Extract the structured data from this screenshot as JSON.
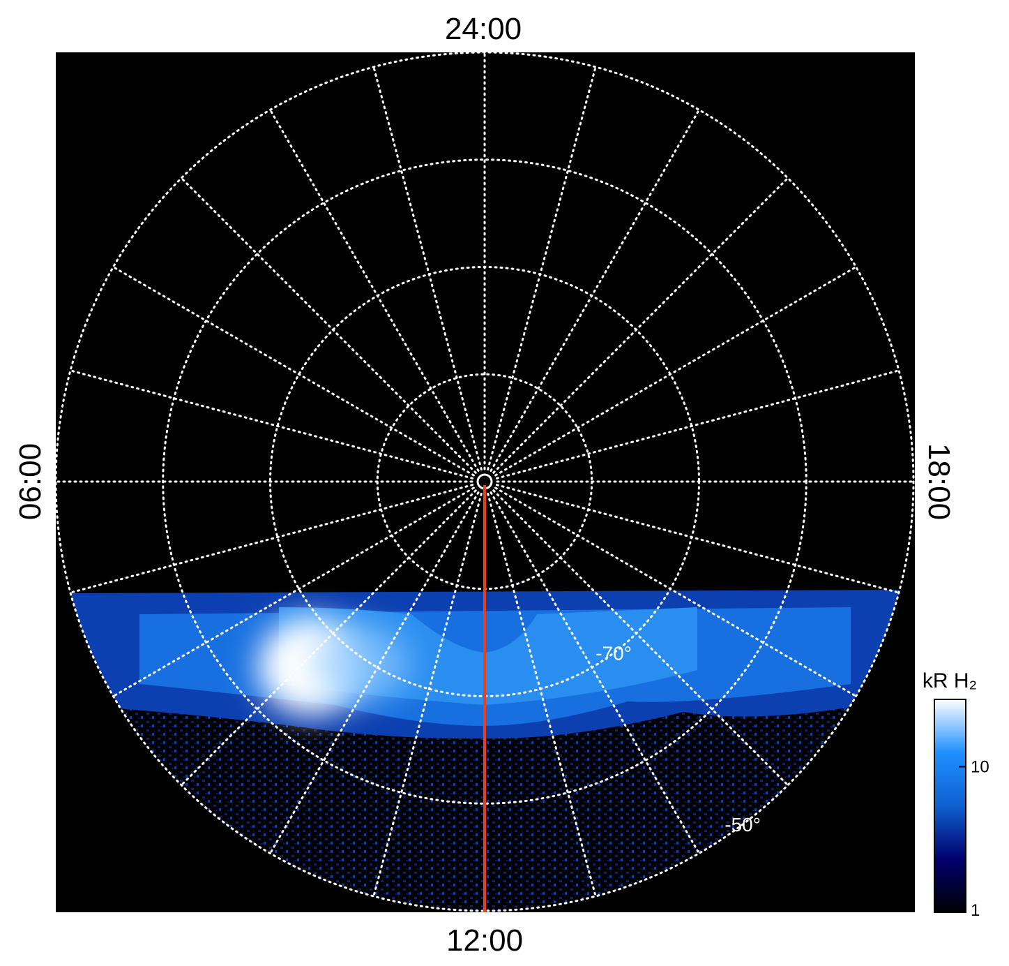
{
  "chart_data": {
    "type": "polar-image",
    "local_times": [
      "24:00",
      "06:00",
      "12:00",
      "18:00"
    ],
    "rlim": [
      -90,
      -50
    ],
    "rticks": [
      {
        "value": -70,
        "label": "-70°"
      },
      {
        "value": -50,
        "label": "-50°"
      }
    ],
    "grid_circles": [
      -80,
      -60
    ],
    "meridian_color": "#e8401c",
    "colorbar": {
      "label": "kR H₂",
      "lim": [
        1,
        29
      ],
      "ticks": [
        1,
        10
      ],
      "log": true,
      "colors": [
        "#000000",
        "#00006e",
        "#1060d0",
        "#1e90ff",
        "#ffffff"
      ]
    }
  }
}
